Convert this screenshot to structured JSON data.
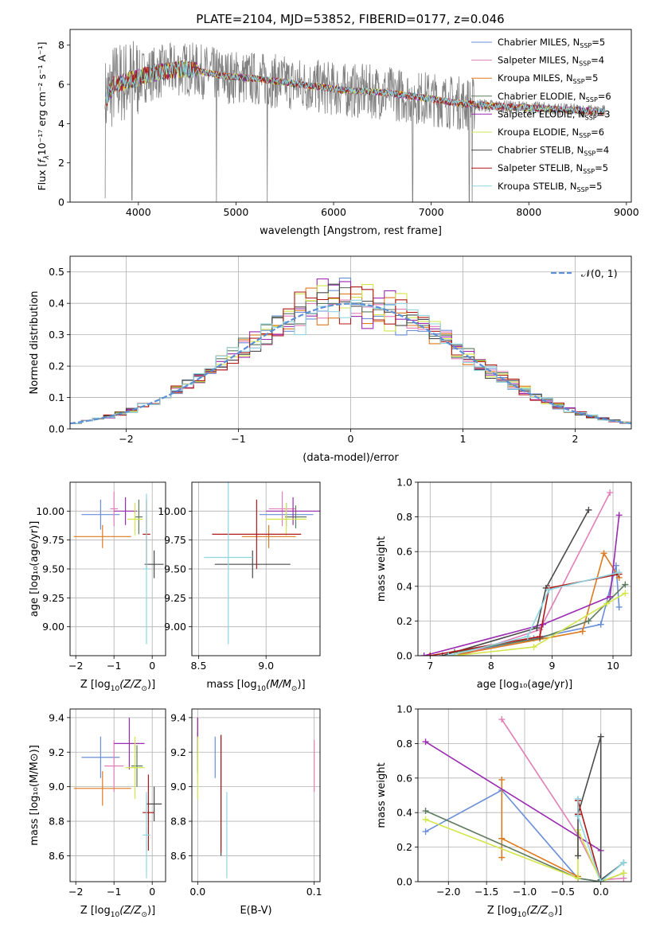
{
  "figure": {
    "title": "PLATE=2104, MJD=53852, FIBERID=0177, z=0.046",
    "colors": {
      "Chabrier MILES": "#6a8fd8",
      "Salpeter MILES": "#e07fb8",
      "Kroupa MILES": "#dd7a1f",
      "Chabrier ELODIE": "#5e7a5e",
      "Salpeter ELODIE": "#9b2bb2",
      "Kroupa ELODIE": "#d2e64a",
      "Chabrier STELIB": "#4a4a4a",
      "Salpeter STELIB": "#b01818",
      "Kroupa STELIB": "#8fd6e0",
      "data": "#808080"
    }
  },
  "chart_data": [
    {
      "id": "spectrum",
      "type": "line",
      "xlabel": "wavelength [Angstrom, rest frame]",
      "ylabel_main": "Flux [",
      "ylabel_sub": "λ",
      "ylabel_rest": "10⁻¹⁷ erg cm⁻² s⁻¹ A⁻¹]",
      "ylabel_f": "f",
      "xlim": [
        3300,
        9050
      ],
      "ylim": [
        0,
        8.8
      ],
      "xticks": [
        4000,
        5000,
        6000,
        7000,
        8000,
        9000
      ],
      "yticks": [
        0,
        2,
        4,
        6,
        8
      ],
      "legend_position": "upper right",
      "legend": [
        {
          "model": "Chabrier MILES",
          "label": "Chabrier MILES, N",
          "sub": "SSP",
          "suffix": "=5"
        },
        {
          "model": "Salpeter MILES",
          "label": "Salpeter MILES, N",
          "sub": "SSP",
          "suffix": "=4"
        },
        {
          "model": "Kroupa MILES",
          "label": "Kroupa MILES, N",
          "sub": "SSP",
          "suffix": "=5"
        },
        {
          "model": "Chabrier ELODIE",
          "label": "Chabrier ELODIE, N",
          "sub": "SSP",
          "suffix": "=6"
        },
        {
          "model": "Salpeter ELODIE",
          "label": "Salpeter ELODIE, N",
          "sub": "SSP",
          "suffix": "=3"
        },
        {
          "model": "Kroupa ELODIE",
          "label": "Kroupa ELODIE, N",
          "sub": "SSP",
          "suffix": "=6"
        },
        {
          "model": "Chabrier STELIB",
          "label": "Chabrier STELIB, N",
          "sub": "SSP",
          "suffix": "=4"
        },
        {
          "model": "Salpeter STELIB",
          "label": "Salpeter STELIB, N",
          "sub": "SSP",
          "suffix": "=5"
        },
        {
          "model": "Kroupa STELIB",
          "label": "Kroupa STELIB, N",
          "sub": "SSP",
          "suffix": "=5"
        }
      ],
      "continuum": [
        [
          3650,
          5.1
        ],
        [
          3750,
          6.0
        ],
        [
          3900,
          6.2
        ],
        [
          4100,
          6.5
        ],
        [
          4300,
          6.7
        ],
        [
          4500,
          6.8
        ],
        [
          4700,
          6.6
        ],
        [
          4900,
          6.4
        ],
        [
          5200,
          6.3
        ],
        [
          5500,
          6.1
        ],
        [
          5800,
          5.9
        ],
        [
          6100,
          5.7
        ],
        [
          6500,
          5.6
        ],
        [
          6800,
          5.4
        ],
        [
          7200,
          5.1
        ],
        [
          7600,
          4.9
        ],
        [
          8000,
          4.8
        ],
        [
          8400,
          4.7
        ],
        [
          8780,
          4.6
        ]
      ],
      "noise_end_data": 7450,
      "spikes_down": [
        [
          3660,
          0.2
        ],
        [
          3935,
          0.1
        ],
        [
          4800,
          0.0
        ],
        [
          5320,
          0.0
        ],
        [
          6810,
          0.0
        ],
        [
          7390,
          0.0
        ],
        [
          7420,
          0.0
        ]
      ],
      "model_range": [
        3660,
        8780
      ]
    },
    {
      "id": "residuals",
      "type": "step",
      "xlabel": "(data-model)/error",
      "ylabel": "Normed distribution",
      "xlim": [
        -2.5,
        2.5
      ],
      "ylim": [
        0,
        0.55
      ],
      "xticks": [
        -2,
        -1,
        0,
        1,
        2
      ],
      "yticks": [
        0.0,
        0.1,
        0.2,
        0.3,
        0.4,
        0.5
      ],
      "grid": true,
      "bin_width": 0.1,
      "reference": {
        "name": "𝒩(0, 1)",
        "mean": 0,
        "sigma": 1
      },
      "legend_position": "upper right"
    },
    {
      "id": "age_vs_Z",
      "type": "errorbar",
      "xlabel_pre": "Z [log",
      "xlabel_sub": "10",
      "xlabel_post": "(Z/Z",
      "xlabel_sun": "⊙",
      "xlabel_end": ")]",
      "ylabel": "age  [log₁₀(age/yr)]",
      "xlim": [
        -2.15,
        0.35
      ],
      "ylim": [
        8.75,
        10.25
      ],
      "xticks": [
        -2,
        -1,
        0
      ],
      "yticks": [
        9.0,
        9.25,
        9.5,
        9.75,
        10.0
      ],
      "grid": true,
      "points": [
        {
          "model": "Chabrier MILES",
          "x": -1.35,
          "xerr": 0.5,
          "y": 9.97,
          "yerr": 0.13
        },
        {
          "model": "Salpeter MILES",
          "x": -1.0,
          "xerr": 0.1,
          "y": 10.02,
          "yerr": 0.15
        },
        {
          "model": "Kroupa MILES",
          "x": -1.3,
          "xerr": 0.75,
          "y": 9.78,
          "yerr": 0.1
        },
        {
          "model": "Chabrier ELODIE",
          "x": -0.35,
          "xerr": 0.1,
          "y": 9.95,
          "yerr": 0.15
        },
        {
          "model": "Salpeter ELODIE",
          "x": -0.7,
          "xerr": 0.3,
          "y": 10.0,
          "yerr": 0.12
        },
        {
          "model": "Kroupa ELODIE",
          "x": -0.45,
          "xerr": 0.2,
          "y": 9.93,
          "yerr": 0.14
        },
        {
          "model": "Chabrier STELIB",
          "x": 0.05,
          "xerr": 0.25,
          "y": 9.54,
          "yerr": 0.12
        },
        {
          "model": "Salpeter STELIB",
          "x": -0.15,
          "xerr": 0.1,
          "y": 9.8,
          "yerr": 0.3
        },
        {
          "model": "Kroupa STELIB",
          "x": -0.15,
          "xerr": 0.1,
          "y": 9.5,
          "yerr": 0.65
        }
      ]
    },
    {
      "id": "age_vs_mass",
      "type": "errorbar",
      "xlabel_pre": "mass [log",
      "xlabel_sub": "10",
      "xlabel_post": "(M/M",
      "xlabel_sun": "⊙",
      "xlabel_end": ")]",
      "xlim": [
        8.45,
        9.4
      ],
      "ylim": [
        8.75,
        10.25
      ],
      "xticks": [
        8.5,
        9.0
      ],
      "yticks": [
        9.0,
        9.25,
        9.5,
        9.75,
        10.0
      ],
      "grid": true,
      "points": [
        {
          "model": "Chabrier MILES",
          "x": 9.15,
          "xerr": 0.2,
          "y": 9.97,
          "yerr": 0.1
        },
        {
          "model": "Salpeter MILES",
          "x": 9.12,
          "xerr": 0.1,
          "y": 10.02,
          "yerr": 0.15
        },
        {
          "model": "Kroupa MILES",
          "x": 9.02,
          "xerr": 0.2,
          "y": 9.78,
          "yerr": 0.1
        },
        {
          "model": "Chabrier ELODIE",
          "x": 9.22,
          "xerr": 0.08,
          "y": 9.95,
          "yerr": 0.1
        },
        {
          "model": "Salpeter ELODIE",
          "x": 9.2,
          "xerr": 0.2,
          "y": 10.0,
          "yerr": 0.12
        },
        {
          "model": "Kroupa ELODIE",
          "x": 9.15,
          "xerr": 0.15,
          "y": 9.93,
          "yerr": 0.14
        },
        {
          "model": "Chabrier STELIB",
          "x": 8.9,
          "xerr": 0.28,
          "y": 9.54,
          "yerr": 0.12
        },
        {
          "model": "Salpeter STELIB",
          "x": 8.93,
          "xerr": 0.33,
          "y": 9.8,
          "yerr": 0.3
        },
        {
          "model": "Kroupa STELIB",
          "x": 8.72,
          "xerr": 0.18,
          "y": 9.6,
          "yerr": 0.75
        }
      ]
    },
    {
      "id": "weight_vs_age",
      "type": "line",
      "xlabel": "age  [log₁₀(age/yr)]",
      "ylabel": "mass weight",
      "xlim": [
        6.8,
        10.3
      ],
      "ylim": [
        0,
        1.0
      ],
      "xticks": [
        7,
        8,
        9,
        10
      ],
      "yticks": [
        0.0,
        0.2,
        0.4,
        0.6,
        0.8,
        1.0
      ],
      "grid": true,
      "series": [
        {
          "model": "Chabrier MILES",
          "x": [
            7.5,
            8.7,
            9.8,
            10.05,
            10.1
          ],
          "y": [
            0.01,
            0.1,
            0.18,
            0.52,
            0.28
          ]
        },
        {
          "model": "Salpeter MILES",
          "x": [
            7.5,
            8.8,
            9.95
          ],
          "y": [
            0.0,
            0.15,
            0.94
          ]
        },
        {
          "model": "Kroupa MILES",
          "x": [
            7.5,
            9.5,
            9.85,
            10.1
          ],
          "y": [
            0.01,
            0.14,
            0.59,
            0.45
          ]
        },
        {
          "model": "Chabrier ELODIE",
          "x": [
            7.4,
            8.8,
            9.6,
            10.2
          ],
          "y": [
            0.02,
            0.1,
            0.2,
            0.41
          ]
        },
        {
          "model": "Salpeter ELODIE",
          "x": [
            6.9,
            8.85,
            9.95,
            10.1
          ],
          "y": [
            0.0,
            0.18,
            0.34,
            0.81
          ]
        },
        {
          "model": "Kroupa ELODIE",
          "x": [
            7.4,
            8.7,
            9.9,
            10.2
          ],
          "y": [
            0.0,
            0.05,
            0.3,
            0.36
          ]
        },
        {
          "model": "Chabrier STELIB",
          "x": [
            7.2,
            8.75,
            8.9,
            9.6
          ],
          "y": [
            0.0,
            0.16,
            0.39,
            0.84
          ]
        },
        {
          "model": "Salpeter STELIB",
          "x": [
            7.0,
            8.8,
            8.95,
            10.1
          ],
          "y": [
            0.0,
            0.11,
            0.39,
            0.47
          ]
        },
        {
          "model": "Kroupa STELIB",
          "x": [
            7.3,
            8.6,
            8.95,
            10.1
          ],
          "y": [
            0.0,
            0.11,
            0.38,
            0.48
          ]
        }
      ]
    },
    {
      "id": "mass_vs_Z",
      "type": "errorbar",
      "xlabel_pre": "Z [log",
      "xlabel_sub": "10",
      "xlabel_post": "(Z/Z",
      "xlabel_sun": "⊙",
      "xlabel_end": ")]",
      "ylabel": "mass [log₁₀(M/M⊙)]",
      "xlim": [
        -2.15,
        0.35
      ],
      "ylim": [
        8.45,
        9.45
      ],
      "xticks": [
        -2,
        -1,
        0
      ],
      "yticks": [
        8.6,
        8.8,
        9.0,
        9.2,
        9.4
      ],
      "grid": true,
      "points": [
        {
          "model": "Chabrier MILES",
          "x": -1.35,
          "xerr": 0.5,
          "y": 9.17,
          "yerr": 0.12
        },
        {
          "model": "Salpeter MILES",
          "x": -1.0,
          "xerr": 0.25,
          "y": 9.12,
          "yerr": 0.15
        },
        {
          "model": "Kroupa MILES",
          "x": -1.3,
          "xerr": 0.75,
          "y": 8.99,
          "yerr": 0.1
        },
        {
          "model": "Chabrier ELODIE",
          "x": -0.4,
          "xerr": 0.15,
          "y": 9.12,
          "yerr": 0.12
        },
        {
          "model": "Salpeter ELODIE",
          "x": -0.6,
          "xerr": 0.4,
          "y": 9.25,
          "yerr": 0.15
        },
        {
          "model": "Kroupa ELODIE",
          "x": -0.45,
          "xerr": 0.25,
          "y": 9.11,
          "yerr": 0.18
        },
        {
          "model": "Chabrier STELIB",
          "x": 0.05,
          "xerr": 0.2,
          "y": 8.9,
          "yerr": 0.1
        },
        {
          "model": "Salpeter STELIB",
          "x": -0.1,
          "xerr": 0.15,
          "y": 8.85,
          "yerr": 0.22
        },
        {
          "model": "Kroupa STELIB",
          "x": -0.15,
          "xerr": 0.1,
          "y": 8.72,
          "yerr": 0.25
        }
      ]
    },
    {
      "id": "mass_vs_ebv",
      "type": "errorbar",
      "xlabel": "E(B-V)",
      "xlim": [
        -0.005,
        0.105
      ],
      "ylim": [
        8.45,
        9.45
      ],
      "xticks": [
        0.0,
        0.1
      ],
      "yticks": [
        8.6,
        8.8,
        9.0,
        9.2,
        9.4
      ],
      "grid": true,
      "points": [
        {
          "model": "Chabrier MILES",
          "x": 0.015,
          "y": 9.17,
          "yerr": 0.12
        },
        {
          "model": "Salpeter MILES",
          "x": 0.1,
          "y": 9.12,
          "yerr": 0.15
        },
        {
          "model": "Kroupa MILES",
          "x": 0.0,
          "y": 9.25,
          "yerr": 0.15
        },
        {
          "model": "Chabrier ELODIE",
          "x": 0.0,
          "y": 9.2,
          "yerr": 0.12
        },
        {
          "model": "Salpeter ELODIE",
          "x": 0.0,
          "y": 9.3,
          "yerr": 0.1
        },
        {
          "model": "Kroupa ELODIE",
          "x": 0.0,
          "y": 9.11,
          "yerr": 0.18
        },
        {
          "model": "Chabrier STELIB",
          "x": 0.02,
          "y": 8.95,
          "yerr": 0.35
        },
        {
          "model": "Salpeter STELIB",
          "x": 0.02,
          "y": 8.96,
          "yerr": 0.34
        },
        {
          "model": "Kroupa STELIB",
          "x": 0.025,
          "y": 8.72,
          "yerr": 0.25
        }
      ]
    },
    {
      "id": "weight_vs_Z",
      "type": "line",
      "xlabel_pre": "Z [log",
      "xlabel_sub": "10",
      "xlabel_post": "(Z/Z",
      "xlabel_sun": "⊙",
      "xlabel_end": ")]",
      "ylabel": "mass weight",
      "xlim": [
        -2.4,
        0.4
      ],
      "ylim": [
        0,
        1.0
      ],
      "xticks": [
        -2.0,
        -1.5,
        -1.0,
        -0.5,
        0.0
      ],
      "yticks": [
        0.0,
        0.2,
        0.4,
        0.6,
        0.8,
        1.0
      ],
      "grid": true,
      "series": [
        {
          "model": "Chabrier MILES",
          "x": [
            -2.3,
            -1.3,
            -0.3,
            0.0
          ],
          "y": [
            0.29,
            0.53,
            0.02,
            0.0
          ]
        },
        {
          "model": "Salpeter MILES",
          "x": [
            -1.3,
            -0.3,
            0.0,
            0.3
          ],
          "y": [
            0.94,
            0.27,
            0.01,
            0.02
          ]
        },
        {
          "model": "Kroupa MILES",
          "x": [
            -1.3,
            -1.3,
            -1.3,
            -0.3
          ],
          "y": [
            0.59,
            0.14,
            0.25,
            0.03
          ]
        },
        {
          "model": "Chabrier ELODIE",
          "x": [
            -2.3,
            -0.3,
            0.0,
            0.3
          ],
          "y": [
            0.41,
            0.02,
            0.0,
            0.05
          ]
        },
        {
          "model": "Salpeter ELODIE",
          "x": [
            -2.3,
            0.0,
            0.0
          ],
          "y": [
            0.81,
            0.18,
            0.0
          ]
        },
        {
          "model": "Kroupa ELODIE",
          "x": [
            -2.3,
            -0.3,
            -0.3,
            0.0,
            0.3
          ],
          "y": [
            0.36,
            0.02,
            0.3,
            0.0,
            0.05
          ]
        },
        {
          "model": "Chabrier STELIB",
          "x": [
            -0.3,
            -0.3,
            0.0,
            0.0,
            0.3
          ],
          "y": [
            0.15,
            0.39,
            0.84,
            0.01,
            0.11
          ]
        },
        {
          "model": "Salpeter STELIB",
          "x": [
            -0.3,
            -0.3,
            0.0
          ],
          "y": [
            0.39,
            0.47,
            0.0
          ]
        },
        {
          "model": "Kroupa STELIB",
          "x": [
            -0.3,
            -0.3,
            0.0,
            0.3
          ],
          "y": [
            0.48,
            0.38,
            0.0,
            0.11
          ]
        }
      ]
    }
  ]
}
